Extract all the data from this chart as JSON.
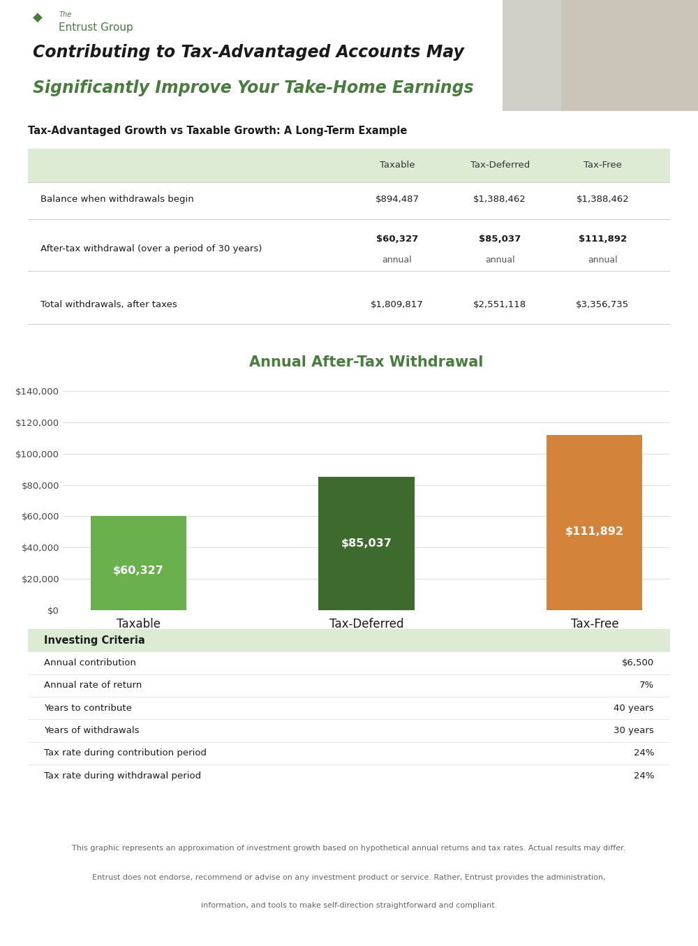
{
  "header_bg_color": "#e8f0e4",
  "header_title_line1": "Contributing to Tax-Advantaged Accounts May",
  "header_title_line2": "Significantly Improve Your Take-Home Earnings",
  "header_title_color1": "#1a1a1a",
  "header_title_color2": "#4a7c3f",
  "section1_title": "Tax-Advantaged Growth vs Taxable Growth: A Long-Term Example",
  "table_header_bg": "#ddebd4",
  "table_row_bg": "#ffffff",
  "table_divider_color": "#cccccc",
  "table_cols": [
    "",
    "Taxable",
    "Tax-Deferred",
    "Tax-Free"
  ],
  "table_rows": [
    [
      "Balance when withdrawals begin",
      "$894,487",
      "$1,388,462",
      "$1,388,462"
    ],
    [
      "After-tax withdrawal (over a period of 30 years)",
      "$60,327\nannual",
      "$85,037\nannual",
      "$111,892\nannual"
    ],
    [
      "Total withdrawals, after taxes",
      "$1,809,817",
      "$2,551,118",
      "$3,356,735"
    ]
  ],
  "chart_title": "Annual After-Tax Withdrawal",
  "chart_title_color": "#4a7c3f",
  "bar_categories": [
    "Taxable",
    "Tax-Deferred",
    "Tax-Free"
  ],
  "bar_values": [
    60327,
    85037,
    111892
  ],
  "bar_colors": [
    "#6ab04c",
    "#3d6b2e",
    "#d4843a"
  ],
  "bar_labels": [
    "$60,327",
    "$85,037",
    "$111,892"
  ],
  "bar_label_color": "#ffffff",
  "chart_bg": "#ffffff",
  "chart_grid_color": "#dddddd",
  "chart_yticks": [
    0,
    20000,
    40000,
    60000,
    80000,
    100000,
    120000,
    140000
  ],
  "chart_ytick_labels": [
    "$0",
    "$20,000",
    "$40,000",
    "$60,000",
    "$80,000",
    "$100,000",
    "$120,000",
    "$140,000"
  ],
  "investing_header": "Investing Criteria",
  "investing_header_bg": "#ddebd4",
  "investing_rows": [
    [
      "Annual contribution",
      "$6,500"
    ],
    [
      "Annual rate of return",
      "7%"
    ],
    [
      "Years to contribute",
      "40 years"
    ],
    [
      "Years of withdrawals",
      "30 years"
    ],
    [
      "Tax rate during contribution period",
      "24%"
    ],
    [
      "Tax rate during withdrawal period",
      "24%"
    ]
  ],
  "footer_text1": "This graphic represents an approximation of investment growth based on hypothetical annual returns and tax rates. Actual results may differ.",
  "footer_text2": "Entrust does not endorse, recommend or advise on any investment product or service. Rather, Entrust provides the administration,",
  "footer_text3": "information, and tools to make self-direction straightforward and compliant.",
  "footer_color": "#666666",
  "bg_color": "#ffffff",
  "logo_color": "#4a7c3f",
  "photo_bg": "#b8c4b8"
}
